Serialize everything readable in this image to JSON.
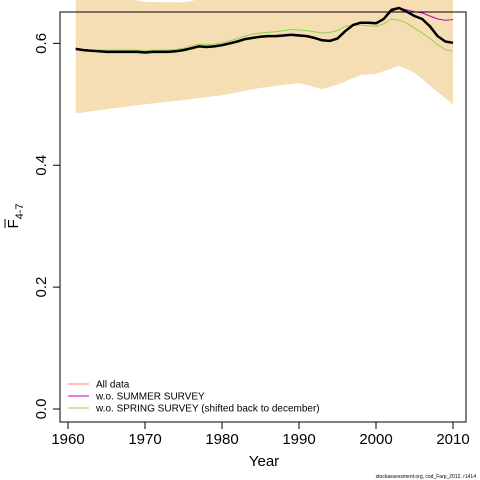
{
  "chart_data": {
    "type": "line",
    "xlabel": "Year",
    "ylabel_main": "F",
    "ylabel_sub": "4-7",
    "xlim": [
      1960,
      2010
    ],
    "ylim": [
      0.0,
      0.8
    ],
    "x_ticks": [
      1960,
      1970,
      1980,
      1990,
      2000,
      2010
    ],
    "y_ticks": [
      0.0,
      0.2,
      0.4,
      0.6
    ],
    "y_tick_labels": [
      "0.0",
      "0.2",
      "0.4",
      "0.6"
    ],
    "band": {
      "color": "#F5DEB3",
      "x": [
        1961,
        1965,
        1970,
        1975,
        1980,
        1985,
        1990,
        1993,
        1995,
        1998,
        2000,
        2003,
        2005,
        2008,
        2010
      ],
      "upper": [
        0.697,
        0.68,
        0.668,
        0.667,
        0.68,
        0.692,
        0.695,
        0.688,
        0.7,
        0.722,
        0.727,
        0.752,
        0.745,
        0.715,
        0.703
      ],
      "lower": [
        0.485,
        0.492,
        0.5,
        0.507,
        0.515,
        0.527,
        0.535,
        0.525,
        0.532,
        0.548,
        0.55,
        0.563,
        0.552,
        0.52,
        0.5
      ]
    },
    "x": [
      1961,
      1962,
      1963,
      1964,
      1965,
      1966,
      1967,
      1968,
      1969,
      1970,
      1971,
      1972,
      1973,
      1974,
      1975,
      1976,
      1977,
      1978,
      1979,
      1980,
      1981,
      1982,
      1983,
      1984,
      1985,
      1986,
      1987,
      1988,
      1989,
      1990,
      1991,
      1992,
      1993,
      1994,
      1995,
      1996,
      1997,
      1998,
      1999,
      2000,
      2001,
      2002,
      2003,
      2004,
      2005,
      2006,
      2007,
      2008,
      2009,
      2010
    ],
    "series": [
      {
        "name": "All data",
        "color": "#000000",
        "legend_color": "#FF7F7F",
        "width": 2.5,
        "values": [
          0.591,
          0.589,
          0.588,
          0.587,
          0.586,
          0.586,
          0.586,
          0.586,
          0.586,
          0.585,
          0.586,
          0.586,
          0.586,
          0.587,
          0.589,
          0.592,
          0.595,
          0.594,
          0.595,
          0.597,
          0.6,
          0.603,
          0.607,
          0.609,
          0.611,
          0.612,
          0.612,
          0.613,
          0.614,
          0.613,
          0.612,
          0.609,
          0.605,
          0.604,
          0.608,
          0.62,
          0.63,
          0.634,
          0.634,
          0.633,
          0.64,
          0.655,
          0.658,
          0.652,
          0.645,
          0.64,
          0.628,
          0.612,
          0.603,
          0.601
        ]
      },
      {
        "name": "w.o. SUMMER SURVEY",
        "color": "#C000C0",
        "legend_color": "#C000C0",
        "width": 1,
        "values": [
          0.592,
          0.59,
          0.589,
          0.588,
          0.587,
          0.587,
          0.587,
          0.587,
          0.587,
          0.586,
          0.587,
          0.587,
          0.587,
          0.588,
          0.59,
          0.593,
          0.596,
          0.595,
          0.596,
          0.598,
          0.601,
          0.604,
          0.608,
          0.61,
          0.612,
          0.613,
          0.613,
          0.614,
          0.615,
          0.614,
          0.613,
          0.61,
          0.606,
          0.605,
          0.609,
          0.621,
          0.631,
          0.635,
          0.635,
          0.634,
          0.641,
          0.652,
          0.658,
          0.655,
          0.652,
          0.65,
          0.645,
          0.64,
          0.638,
          0.639
        ]
      },
      {
        "name": "w.o. SPRING SURVEY (shifted back to december)",
        "color": "#8FD24E",
        "legend_color": "#8FD24E",
        "width": 1,
        "values": [
          0.59,
          0.589,
          0.589,
          0.589,
          0.589,
          0.589,
          0.589,
          0.589,
          0.589,
          0.588,
          0.589,
          0.589,
          0.589,
          0.59,
          0.592,
          0.596,
          0.599,
          0.598,
          0.599,
          0.601,
          0.604,
          0.608,
          0.612,
          0.615,
          0.617,
          0.618,
          0.619,
          0.621,
          0.623,
          0.622,
          0.621,
          0.619,
          0.617,
          0.618,
          0.621,
          0.628,
          0.63,
          0.63,
          0.629,
          0.628,
          0.632,
          0.64,
          0.638,
          0.633,
          0.625,
          0.617,
          0.608,
          0.598,
          0.59,
          0.587
        ]
      }
    ],
    "legend_position": "bottom-left",
    "caption": "stockassessment.org, cod_Farp_2012, r1414"
  }
}
